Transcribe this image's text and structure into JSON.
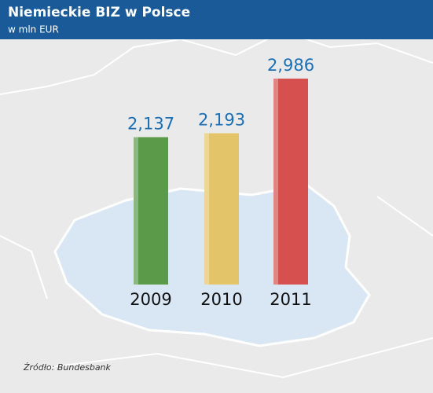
{
  "chart_data": {
    "type": "bar",
    "title": "Niemieckie BIZ w Polsce",
    "subtitle": "w mln EUR",
    "categories": [
      "2009",
      "2010",
      "2011"
    ],
    "values": [
      2137,
      2193,
      2986
    ],
    "value_labels": [
      "2,137",
      "2,193",
      "2,986"
    ],
    "colors": [
      "#5a9a48",
      "#e4c468",
      "#d65050"
    ],
    "source": "Źródło: Bundesbank"
  }
}
